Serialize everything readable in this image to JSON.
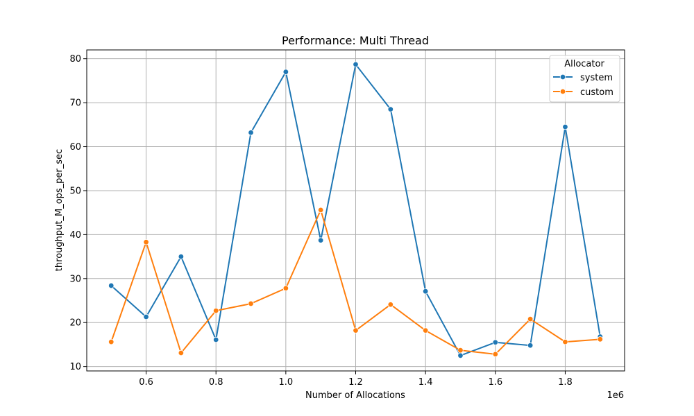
{
  "chart_data": {
    "type": "line",
    "title": "Performance: Multi Thread",
    "xlabel": "Number of Allocations",
    "ylabel": "throughput_M_ops_per_sec",
    "x_offset_label": "1e6",
    "x": [
      500000,
      600000,
      700000,
      800000,
      900000,
      1000000,
      1100000,
      1200000,
      1300000,
      1400000,
      1500000,
      1600000,
      1700000,
      1800000,
      1900000
    ],
    "xlim": [
      430000,
      1970000
    ],
    "ylim": [
      9,
      82
    ],
    "xticks": [
      0.6,
      0.8,
      1.0,
      1.2,
      1.4,
      1.6,
      1.8
    ],
    "xtick_labels": [
      "0.6",
      "0.8",
      "1.0",
      "1.2",
      "1.4",
      "1.6",
      "1.8"
    ],
    "yticks": [
      10,
      20,
      30,
      40,
      50,
      60,
      70,
      80
    ],
    "ytick_labels": [
      "10",
      "20",
      "30",
      "40",
      "50",
      "60",
      "70",
      "80"
    ],
    "grid": true,
    "legend": {
      "title": "Allocator",
      "placement": "top-right"
    },
    "series": [
      {
        "name": "system",
        "color": "#1f77b4",
        "values": [
          28.4,
          21.3,
          35.0,
          16.1,
          63.2,
          77.0,
          38.7,
          78.7,
          68.5,
          27.1,
          12.5,
          15.5,
          14.8,
          64.5,
          16.8
        ]
      },
      {
        "name": "custom",
        "color": "#ff7f0e",
        "values": [
          15.6,
          38.3,
          13.1,
          22.7,
          24.3,
          27.8,
          45.6,
          18.2,
          24.1,
          18.2,
          13.7,
          12.8,
          20.8,
          15.6,
          16.2
        ]
      }
    ]
  }
}
